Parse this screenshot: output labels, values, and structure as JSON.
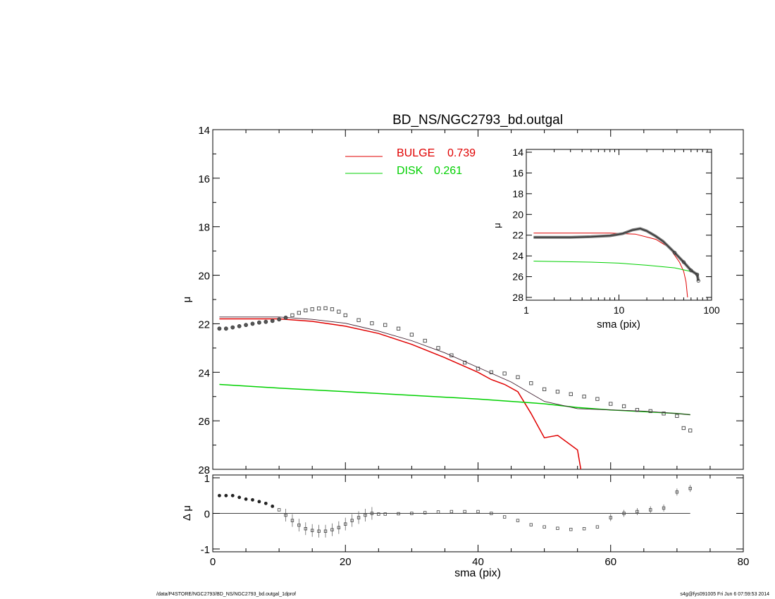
{
  "title": "BD_NS/NGC2793_bd.outgal",
  "footer": {
    "left": "/data/P4STORE/NGC2793/BD_NS/NGC2793_bd.outgal_1dprof",
    "right": "s4g@fys091005  Fri Jun  6 07:59:53 2014"
  },
  "legend": {
    "bulge_label": "BULGE",
    "bulge_value": "0.739",
    "disk_label": "DISK",
    "disk_value": "0.261"
  },
  "colors": {
    "bulge": "#e00000",
    "disk": "#00d000",
    "total": "#402030",
    "data": "#444444"
  },
  "chart_data": [
    {
      "id": "main",
      "type": "line",
      "xlabel": "",
      "ylabel": "μ",
      "xlim": [
        0,
        80
      ],
      "ylim": [
        28,
        14
      ],
      "y_inverted": true,
      "yticks": [
        14,
        16,
        18,
        20,
        22,
        24,
        26,
        28
      ],
      "series": [
        {
          "name": "BULGE",
          "role": "bulge",
          "x": [
            1,
            5,
            10,
            15,
            20,
            25,
            30,
            35,
            40,
            42,
            44,
            46,
            48,
            50,
            52,
            55,
            55.5
          ],
          "y": [
            21.8,
            21.8,
            21.8,
            21.9,
            22.1,
            22.4,
            22.85,
            23.4,
            24.0,
            24.3,
            24.5,
            24.8,
            25.7,
            26.7,
            26.6,
            27.2,
            28.0
          ]
        },
        {
          "name": "DISK",
          "role": "disk",
          "x": [
            1,
            10,
            20,
            30,
            40,
            50,
            55,
            60,
            65,
            70,
            72
          ],
          "y": [
            24.5,
            24.65,
            24.8,
            24.95,
            25.1,
            25.3,
            25.45,
            25.55,
            25.62,
            25.7,
            25.75
          ]
        },
        {
          "role": "model",
          "x": [
            1,
            5,
            10,
            15,
            20,
            25,
            30,
            35,
            40,
            45,
            50,
            55,
            60,
            65,
            70,
            72
          ],
          "y": [
            21.72,
            21.72,
            21.72,
            21.82,
            21.98,
            22.3,
            22.7,
            23.2,
            23.8,
            24.4,
            25.2,
            25.5,
            25.55,
            25.6,
            25.7,
            25.75
          ]
        },
        {
          "role": "observed",
          "x": [
            1,
            2,
            3,
            4,
            5,
            6,
            7,
            8,
            9,
            10,
            11,
            12,
            13,
            14,
            15,
            16,
            17,
            18,
            19,
            20,
            22,
            24,
            26,
            28,
            30,
            32,
            34,
            36,
            38,
            40,
            42,
            44,
            46,
            48,
            50,
            52,
            54,
            56,
            58,
            60,
            62,
            64,
            66,
            68,
            70,
            71,
            72
          ],
          "y": [
            22.2,
            22.2,
            22.15,
            22.1,
            22.05,
            22.0,
            21.95,
            21.92,
            21.88,
            21.82,
            21.75,
            21.65,
            21.55,
            21.45,
            21.4,
            21.37,
            21.36,
            21.4,
            21.5,
            21.65,
            21.85,
            21.98,
            22.05,
            22.2,
            22.45,
            22.7,
            23.0,
            23.3,
            23.6,
            23.85,
            24.0,
            24.05,
            24.2,
            24.45,
            24.7,
            24.8,
            24.9,
            25.0,
            25.1,
            25.3,
            25.4,
            25.55,
            25.6,
            25.7,
            25.8,
            26.3,
            26.4
          ]
        }
      ]
    },
    {
      "id": "residual",
      "type": "scatter",
      "xlabel": "sma (pix)",
      "ylabel": "Δ μ",
      "xlim": [
        0,
        80
      ],
      "ylim": [
        -1,
        1
      ],
      "xticks": [
        0,
        20,
        40,
        60,
        80
      ],
      "yticks": [
        -1,
        0,
        1
      ],
      "series": [
        {
          "role": "residual",
          "x": [
            1,
            2,
            3,
            4,
            5,
            6,
            7,
            8,
            9,
            10,
            11,
            12,
            13,
            14,
            15,
            16,
            17,
            18,
            19,
            20,
            21,
            22,
            23,
            24,
            25,
            26,
            28,
            30,
            32,
            34,
            36,
            38,
            40,
            42,
            44,
            46,
            48,
            50,
            52,
            54,
            56,
            58,
            60,
            62,
            64,
            66,
            68,
            70,
            72
          ],
          "y": [
            0.5,
            0.5,
            0.5,
            0.45,
            0.4,
            0.38,
            0.33,
            0.28,
            0.2,
            0.1,
            -0.05,
            -0.2,
            -0.33,
            -0.43,
            -0.48,
            -0.5,
            -0.5,
            -0.46,
            -0.4,
            -0.3,
            -0.2,
            -0.12,
            -0.05,
            0.0,
            -0.02,
            -0.02,
            -0.01,
            0.0,
            0.02,
            0.04,
            0.05,
            0.05,
            0.05,
            0.0,
            -0.1,
            -0.2,
            -0.32,
            -0.38,
            -0.42,
            -0.45,
            -0.43,
            -0.38,
            -0.12,
            0.0,
            0.05,
            0.1,
            0.15,
            0.6,
            0.7
          ]
        }
      ]
    },
    {
      "id": "inset",
      "type": "line",
      "xscale": "log",
      "xlabel": "sma (pix)",
      "ylabel": "μ",
      "xlim": [
        1,
        100
      ],
      "ylim": [
        28,
        14
      ],
      "xticks": [
        1,
        10,
        100
      ],
      "yticks": [
        14,
        16,
        18,
        20,
        22,
        24,
        26,
        28
      ],
      "series": [
        {
          "role": "bulge",
          "x": [
            1.2,
            3,
            8,
            15,
            25,
            35,
            45,
            50,
            53,
            55
          ],
          "y": [
            21.8,
            21.8,
            21.8,
            21.9,
            22.4,
            23.2,
            24.6,
            25.5,
            26.5,
            28.0
          ]
        },
        {
          "role": "disk",
          "x": [
            1.2,
            5,
            10,
            20,
            40,
            60,
            72
          ],
          "y": [
            24.5,
            24.6,
            24.7,
            24.9,
            25.15,
            25.5,
            25.75
          ]
        },
        {
          "role": "observed",
          "x": [
            1.2,
            2,
            3,
            5,
            8,
            11,
            14,
            17,
            20,
            25,
            30,
            40,
            50,
            60,
            70,
            72
          ],
          "y": [
            22.2,
            22.2,
            22.2,
            22.15,
            22.05,
            21.85,
            21.5,
            21.37,
            21.6,
            22.1,
            22.6,
            23.7,
            24.6,
            25.4,
            25.8,
            26.4
          ]
        }
      ]
    }
  ]
}
